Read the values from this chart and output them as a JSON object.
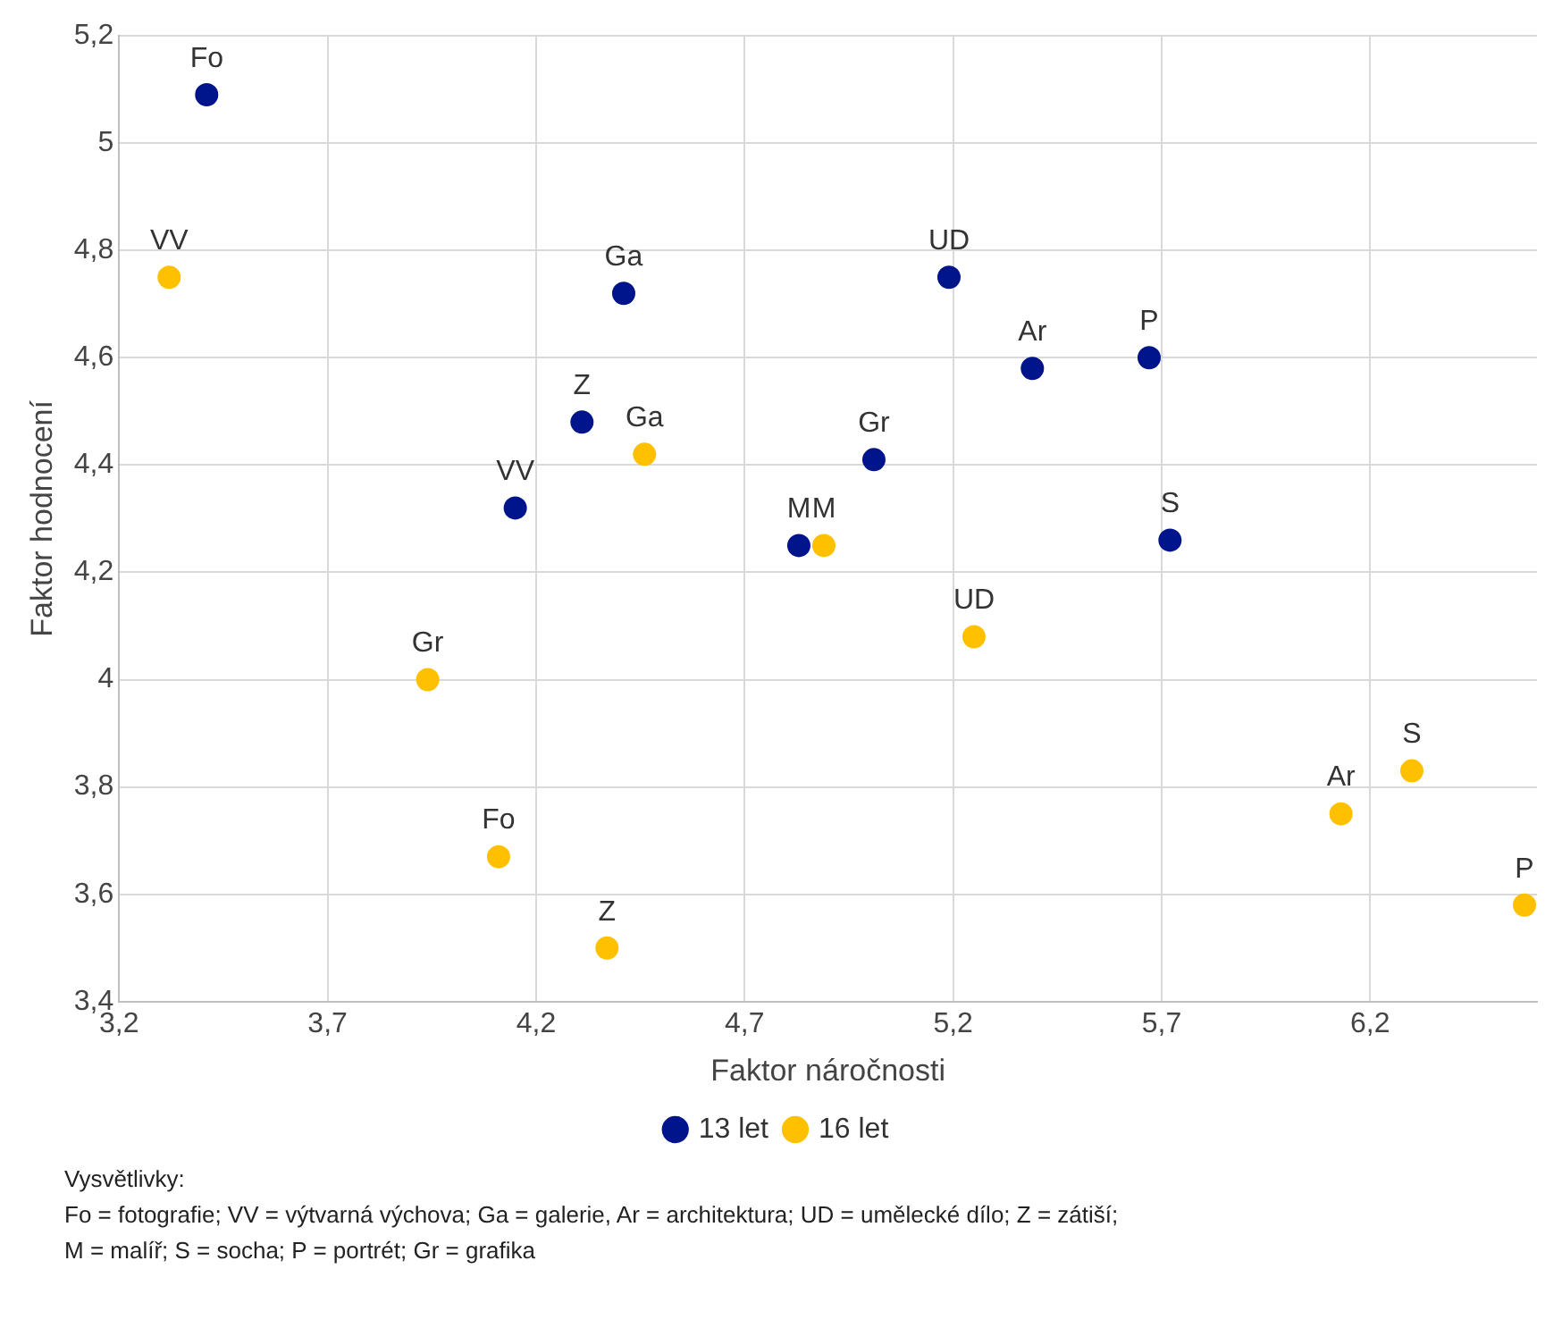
{
  "chart_data": {
    "type": "scatter",
    "xlabel": "Faktor náročnosti",
    "ylabel": "Faktor hodnocení",
    "series": [
      {
        "name": "13 let",
        "color": "#00148c",
        "x": [
          3.41,
          4.15,
          4.31,
          4.41,
          4.83,
          5.01,
          5.19,
          5.39,
          5.67,
          5.72
        ],
        "values": [
          5.09,
          4.32,
          4.48,
          4.72,
          4.25,
          4.41,
          4.75,
          4.58,
          4.6,
          4.26
        ]
      },
      {
        "name": "16 let",
        "color": "#ffc000",
        "x": [
          3.32,
          3.94,
          4.11,
          4.37,
          4.46,
          4.89,
          5.25,
          6.13,
          6.3,
          6.57
        ],
        "values": [
          4.75,
          4.0,
          3.67,
          3.5,
          4.42,
          4.25,
          4.08,
          3.75,
          3.83,
          3.58
        ]
      }
    ],
    "xlim": [
      3.2,
      6.6
    ],
    "xticks": [
      {
        "value": 3.2,
        "label": "3,2"
      },
      {
        "value": 3.7,
        "label": "3,7"
      },
      {
        "value": 4.2,
        "label": "4,2"
      },
      {
        "value": 4.7,
        "label": "4,7"
      },
      {
        "value": 5.2,
        "label": "5,2"
      },
      {
        "value": 5.7,
        "label": "5,7"
      },
      {
        "value": 6.2,
        "label": "6,2"
      }
    ],
    "ylim": [
      3.4,
      5.2
    ],
    "yticks": [
      {
        "value": 3.4,
        "label": "3,4"
      },
      {
        "value": 3.6,
        "label": "3,6"
      },
      {
        "value": 3.8,
        "label": "3,8"
      },
      {
        "value": 4,
        "label": "4"
      },
      {
        "value": 4.2,
        "label": "4,2"
      },
      {
        "value": 4.4,
        "label": "4,4"
      },
      {
        "value": 4.6,
        "label": "4,6"
      },
      {
        "value": 4.8,
        "label": "4,8"
      },
      {
        "value": 5,
        "label": "5"
      },
      {
        "value": 5.2,
        "label": "5,2"
      }
    ],
    "grid": true,
    "legend": "bottom",
    "marker": "circle",
    "annotations": [
      {
        "text": "Fo",
        "x": 3.41,
        "y": 5.09
      },
      {
        "text": "VV",
        "x": 4.15,
        "y": 4.32
      },
      {
        "text": "Z",
        "x": 4.31,
        "y": 4.48
      },
      {
        "text": "Ga",
        "x": 4.41,
        "y": 4.72
      },
      {
        "text": "M",
        "x": 4.83,
        "y": 4.25
      },
      {
        "text": "Gr",
        "x": 5.01,
        "y": 4.41
      },
      {
        "text": "UD",
        "x": 5.19,
        "y": 4.75
      },
      {
        "text": "Ar",
        "x": 5.39,
        "y": 4.58
      },
      {
        "text": "P",
        "x": 5.67,
        "y": 4.6
      },
      {
        "text": "S",
        "x": 5.72,
        "y": 4.26
      },
      {
        "text": "VV",
        "x": 3.32,
        "y": 4.75
      },
      {
        "text": "Gr",
        "x": 3.94,
        "y": 4.0
      },
      {
        "text": "Fo",
        "x": 4.11,
        "y": 3.67
      },
      {
        "text": "Z",
        "x": 4.37,
        "y": 3.5
      },
      {
        "text": "Ga",
        "x": 4.46,
        "y": 4.42
      },
      {
        "text": "M",
        "x": 4.89,
        "y": 4.25
      },
      {
        "text": "UD",
        "x": 5.25,
        "y": 4.08
      },
      {
        "text": "Ar",
        "x": 6.13,
        "y": 3.75
      },
      {
        "text": "S",
        "x": 6.3,
        "y": 3.83
      },
      {
        "text": "P",
        "x": 6.57,
        "y": 3.58
      },
      "Vysvětlivky:",
      "Fo = fotografie; VV = výtvarná výchova; Ga = galerie, Ar = architektura; UD = umělecké dílo; Z = zátiší;",
      "M = malíř; S = socha; P = portrét; Gr = grafika"
    ]
  }
}
